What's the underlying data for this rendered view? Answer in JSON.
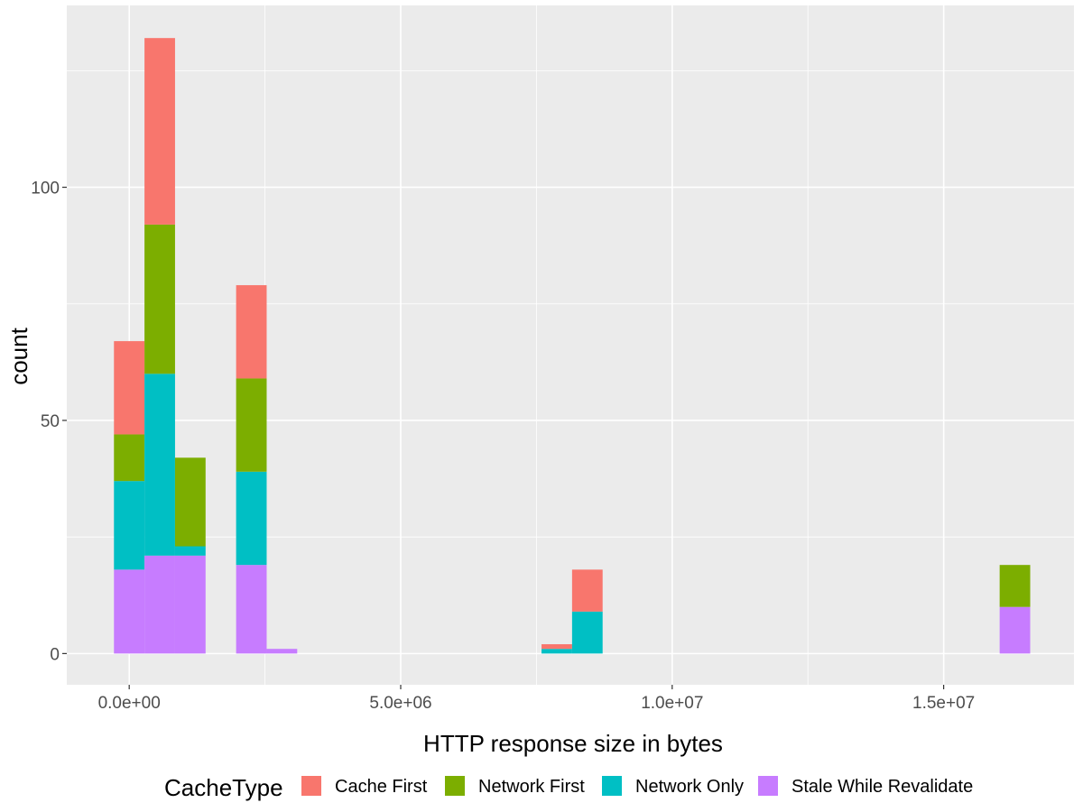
{
  "chart_data": {
    "type": "bar",
    "stacked": true,
    "title": "",
    "xlabel": "HTTP response size in bytes",
    "ylabel": "count",
    "xlim": [
      -1150000,
      17400000
    ],
    "ylim": [
      -6.7,
      139
    ],
    "x_ticks": [
      {
        "value": 0,
        "label": "0.0e+00"
      },
      {
        "value": 5000000,
        "label": "5.0e+06"
      },
      {
        "value": 10000000,
        "label": "1.0e+07"
      },
      {
        "value": 15000000,
        "label": "1.5e+07"
      }
    ],
    "y_ticks": [
      {
        "value": 0,
        "label": "0"
      },
      {
        "value": 50,
        "label": "50"
      },
      {
        "value": 100,
        "label": "100"
      }
    ],
    "bin_width": 562500,
    "bins": [
      0,
      562500,
      1125000,
      2250000,
      2812500,
      7875000,
      8437500,
      16312500
    ],
    "legend_title": "CacheType",
    "legend_position": "bottom",
    "grid": true,
    "series": [
      {
        "name": "Cache First",
        "color": "#F8766D",
        "values": [
          20,
          40,
          0,
          20,
          0,
          1,
          9,
          0
        ]
      },
      {
        "name": "Network First",
        "color": "#7CAE00",
        "values": [
          10,
          32,
          19,
          20,
          0,
          0,
          0,
          9
        ]
      },
      {
        "name": "Network Only",
        "color": "#00BFC4",
        "values": [
          19,
          39,
          2,
          20,
          0,
          1,
          9,
          0
        ]
      },
      {
        "name": "Stale While Revalidate",
        "color": "#C77CFF",
        "values": [
          18,
          21,
          21,
          19,
          1,
          0,
          0,
          10
        ]
      }
    ]
  }
}
